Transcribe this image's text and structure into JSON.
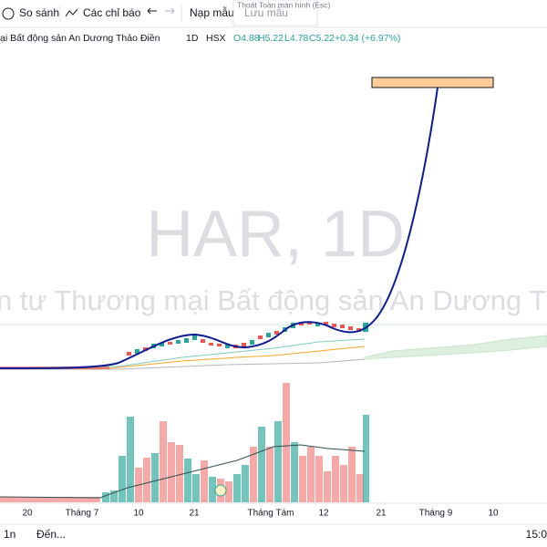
{
  "toolbar": {
    "compare": "So sánh",
    "indicators": "Các chỉ báo",
    "load_template": "Nạp mẫu",
    "save_template": "Lưu mẫu",
    "tooltip": "Thoát Toàn màn hình (Esc)"
  },
  "legend": {
    "name": "ại Bất động sản An Dương Thảo Điền",
    "interval": "1D",
    "exchange": "HSX",
    "open": "O4.88",
    "high": "H5.22",
    "low": "L4.78",
    "close": "C5.22",
    "change": "+0.34 (+6.97%)"
  },
  "watermark": {
    "symbol": "HAR, 1D",
    "company": "n tư Thương mại Bất động sản An Dương T"
  },
  "x_axis": {
    "labels": [
      "20",
      "Tháng 7",
      "10",
      "21",
      "Tháng Tám",
      "12",
      "21",
      "Tháng 9",
      "10"
    ]
  },
  "footer": {
    "range": "1n",
    "goto": "Đến...",
    "time": "15:0"
  }
}
